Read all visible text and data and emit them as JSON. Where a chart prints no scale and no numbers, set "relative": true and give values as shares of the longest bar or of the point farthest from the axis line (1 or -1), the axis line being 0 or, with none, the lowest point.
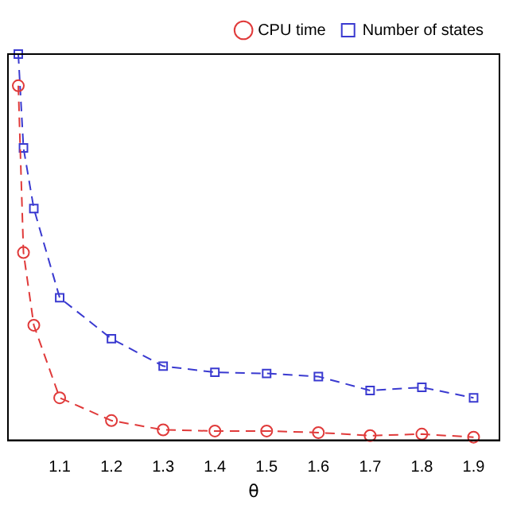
{
  "chart_data": {
    "type": "line",
    "xlabel": "θ",
    "relative": true,
    "line_style": "dashed",
    "legend": "top right",
    "grid": false,
    "xlim": [
      1.0,
      1.95
    ],
    "xticks": [
      1.1,
      1.2,
      1.3,
      1.4,
      1.5,
      1.6,
      1.7,
      1.8,
      1.9
    ],
    "x": [
      1.02,
      1.03,
      1.05,
      1.1,
      1.2,
      1.3,
      1.4,
      1.5,
      1.6,
      1.7,
      1.8,
      1.9
    ],
    "series": [
      {
        "name": "CPU time",
        "color": "#e03a3a",
        "marker": "circle",
        "values": [
          0.918,
          0.486,
          0.298,
          0.11,
          0.051,
          0.027,
          0.024,
          0.024,
          0.02,
          0.012,
          0.016,
          0.008
        ]
      },
      {
        "name": "Number of states",
        "color": "#3a3ad0",
        "marker": "square",
        "values": [
          1,
          0.757,
          0.6,
          0.369,
          0.263,
          0.192,
          0.176,
          0.173,
          0.165,
          0.129,
          0.137,
          0.11
        ]
      }
    ]
  }
}
